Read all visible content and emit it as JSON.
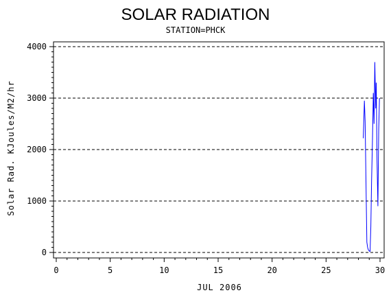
{
  "chart_data": {
    "type": "line",
    "title": "SOLAR RADIATION",
    "subtitle": "STATION=PHCK",
    "xlabel": "JUL 2006",
    "ylabel": "Solar Rad. KJoules/M2/hr",
    "xlim": [
      0,
      30
    ],
    "ylim": [
      0,
      4000
    ],
    "x_ticks": [
      0,
      5,
      10,
      15,
      20,
      25,
      30
    ],
    "y_ticks": [
      0,
      1000,
      2000,
      3000,
      4000
    ],
    "y_tick_labels": [
      "0",
      "1000",
      "2000",
      "3000",
      "4000"
    ],
    "grid": "horizontal dashed",
    "series": [
      {
        "color": "#0000ff",
        "x": [
          28.45,
          28.55,
          28.62,
          28.7,
          28.78,
          28.85,
          28.92,
          29.0,
          29.08,
          29.15,
          29.22,
          29.3,
          29.38,
          29.45,
          29.52,
          29.6,
          29.65,
          29.72,
          29.8,
          29.88,
          29.95
        ],
        "y": [
          2220,
          2950,
          2550,
          1400,
          200,
          100,
          50,
          30,
          20,
          500,
          1400,
          2200,
          3100,
          2500,
          3700,
          2800,
          3300,
          1800,
          900,
          2400,
          3000
        ]
      }
    ]
  }
}
